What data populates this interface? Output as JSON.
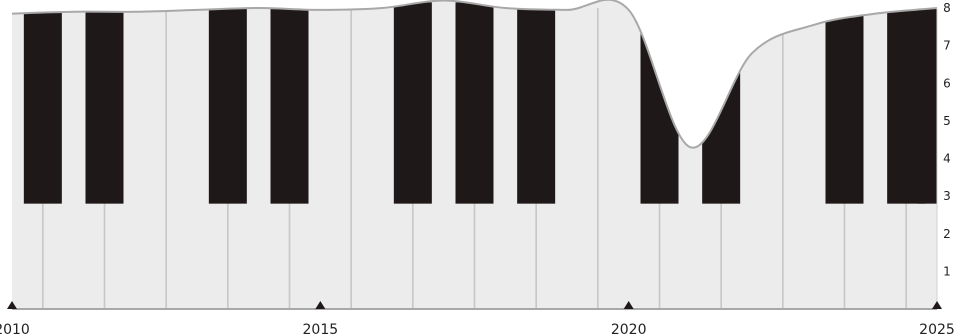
{
  "chart_data": {
    "type": "area",
    "title": "",
    "xlabel": "",
    "ylabel": "",
    "x": [
      2010,
      2011,
      2012,
      2013,
      2014,
      2015,
      2016,
      2017,
      2018,
      2019,
      2020,
      2021,
      2022,
      2023,
      2024,
      2025
    ],
    "series": [
      {
        "values": [
          7.85,
          7.9,
          7.9,
          7.95,
          8.0,
          7.95,
          8.0,
          8.2,
          8.0,
          7.95,
          7.95,
          4.3,
          6.8,
          7.55,
          7.85,
          8.0
        ]
      }
    ],
    "xlim": [
      2010,
      2025
    ],
    "ylim": [
      0,
      8
    ],
    "x_ticks": [
      "2010",
      "2015",
      "2020",
      "2025"
    ],
    "y_ticks": [
      "1",
      "2",
      "3",
      "4",
      "5",
      "6",
      "7",
      "8"
    ],
    "colors": {
      "fill": "#ececec",
      "line": "#a8a8a8",
      "black_key": "#1f1818",
      "marker": "#1f1818",
      "text": "#222222"
    },
    "piano_pattern": [
      true,
      true,
      false,
      true,
      true,
      false,
      true,
      true,
      true,
      false,
      true,
      true,
      false,
      true,
      true,
      true
    ],
    "grid": false,
    "legend": "none"
  }
}
